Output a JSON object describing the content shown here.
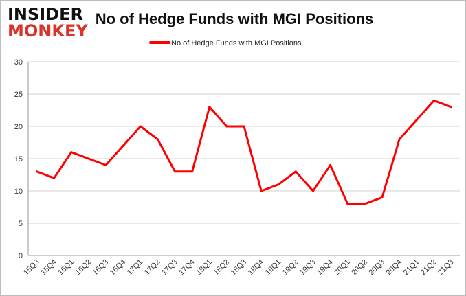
{
  "logo": {
    "line1": "INSIDER",
    "line2": "MONKEY"
  },
  "chart_data": {
    "type": "line",
    "title": "No of Hedge Funds with MGI Positions",
    "categories": [
      "15Q3",
      "15Q4",
      "16Q1",
      "16Q2",
      "16Q3",
      "16Q4",
      "17Q1",
      "17Q2",
      "17Q3",
      "17Q4",
      "18Q1",
      "18Q2",
      "18Q3",
      "18Q4",
      "19Q1",
      "19Q2",
      "19Q3",
      "19Q4",
      "20Q1",
      "20Q2",
      "20Q3",
      "20Q4",
      "21Q1",
      "21Q2",
      "21Q3"
    ],
    "series": [
      {
        "name": "No of Hedge Funds with MGI Positions",
        "color": "#ff0000",
        "values": [
          13,
          12,
          16,
          15,
          14,
          17,
          20,
          18,
          13,
          13,
          23,
          20,
          20,
          10,
          11,
          13,
          10,
          14,
          8,
          8,
          9,
          18,
          21,
          24,
          23
        ]
      }
    ],
    "ylim": [
      0,
      30
    ],
    "yticks": [
      0,
      5,
      10,
      15,
      20,
      25,
      30
    ],
    "grid": true,
    "legend": "top-center"
  }
}
